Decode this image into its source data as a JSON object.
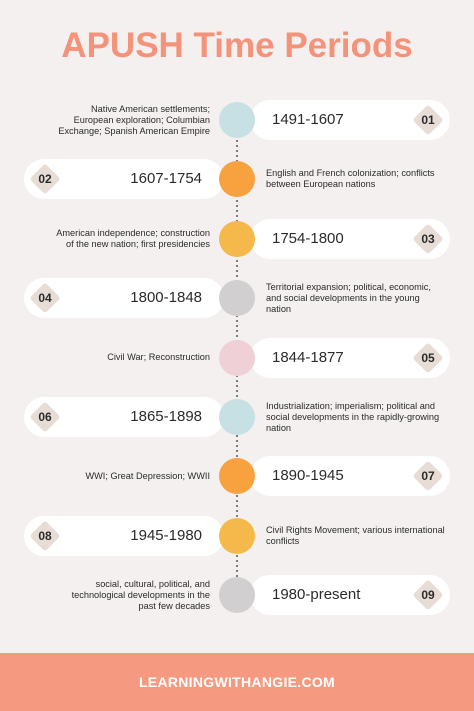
{
  "header": {
    "title": "APUSH Time Periods"
  },
  "periods": [
    {
      "number": "01",
      "years": "1491-1607",
      "description": "Native American settlements; European exploration; Columbian Exchange; Spanish American Empire",
      "color": "#c6e0e3"
    },
    {
      "number": "02",
      "years": "1607-1754",
      "description": "English and French colonization; conflicts between European nations",
      "color": "#f7a23e"
    },
    {
      "number": "03",
      "years": "1754-1800",
      "description": "American independence; construction of the new nation; first presidencies",
      "color": "#f5b84a"
    },
    {
      "number": "04",
      "years": "1800-1848",
      "description": "Territorial expansion; political, economic, and social developments in the young nation",
      "color": "#d2cfd0"
    },
    {
      "number": "05",
      "years": "1844-1877",
      "description": "Civil War; Reconstruction",
      "color": "#efd0d7"
    },
    {
      "number": "06",
      "years": "1865-1898",
      "description": "Industrialization; imperialism; political and social developments in the rapidly-growing nation",
      "color": "#c6e0e3"
    },
    {
      "number": "07",
      "years": "1890-1945",
      "description": "WWI; Great Depression; WWII",
      "color": "#f7a23e"
    },
    {
      "number": "08",
      "years": "1945-1980",
      "description": "Civil Rights Movement; various international conflicts",
      "color": "#f5b84a"
    },
    {
      "number": "09",
      "years": "1980-present",
      "description": "social, cultural, political, and technological developments in the past few decades",
      "color": "#d2cfd0"
    }
  ],
  "footer": {
    "text": "LEARNINGWITHANGIE.COM"
  }
}
